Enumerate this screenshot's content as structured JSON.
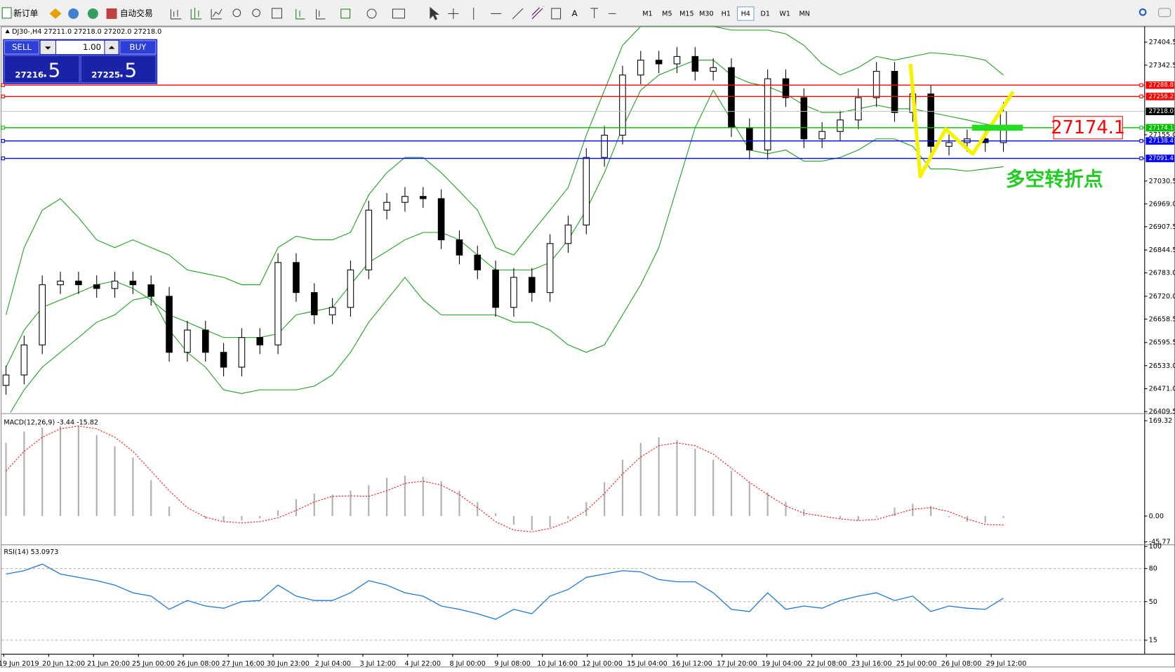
{
  "toolbar": {
    "new_order": "新订单",
    "auto_trading": "自动交易",
    "timeframes": [
      "M1",
      "M5",
      "M15",
      "M30",
      "H1",
      "H4",
      "D1",
      "W1",
      "MN"
    ],
    "active_timeframe": "H4"
  },
  "trade_panel": {
    "sell": "SELL",
    "buy": "BUY",
    "volume": "1.00",
    "sell_price": "27216",
    "sell_price_small": ".5",
    "buy_price": "27225",
    "buy_price_small": ".5"
  },
  "time_axis": {
    "labels": [
      "19 Jun 2019",
      "20 Jun 12:00",
      "21 Jun 20:00",
      "25 Jun 00:00",
      "26 Jun 08:00",
      "27 Jun 16:00",
      "30 Jun 23:00",
      "2 Jul 04:00",
      "3 Jul 12:00",
      "4 Jul 22:00",
      "8 Jul 00:00",
      "9 Jul 08:00",
      "10 Jul 16:00",
      "12 Jul 00:00",
      "15 Jul 04:00",
      "16 Jul 12:00",
      "17 Jul 20:00",
      "19 Jul 04:00",
      "22 Jul 08:00",
      "23 Jul 16:00",
      "25 Jul 00:00",
      "26 Jul 08:00",
      "29 Jul 12:00"
    ]
  },
  "chart_data": [
    {
      "type": "candlestick",
      "title": "DJ30-,H4  27211.0 27218.0 27202.0 27218.0",
      "candles": {
        "open": [
          26480,
          26508,
          26589,
          26751,
          26761,
          26751,
          26741,
          26761,
          26751,
          26720,
          26569,
          26629,
          26569,
          26529,
          26609,
          26589,
          26811,
          26730,
          26670,
          26690,
          26791,
          26952,
          26973,
          26989,
          26983,
          26872,
          26831,
          26791,
          26690,
          26771,
          26730,
          26862,
          26912,
          27094,
          27154,
          27316,
          27356,
          27346,
          27366,
          27326,
          27336,
          27174,
          27114,
          27306,
          27255,
          27144,
          27164,
          27195,
          27255,
          27326,
          27215,
          27265,
          27124,
          27134,
          27144,
          27134
        ],
        "high": [
          26533,
          26614,
          26776,
          26786,
          26786,
          26776,
          26786,
          26786,
          26776,
          26745,
          26654,
          26654,
          26594,
          26634,
          26634,
          26836,
          26836,
          26755,
          26715,
          26816,
          26977,
          26998,
          27014,
          27014,
          27008,
          26897,
          26856,
          26816,
          26796,
          26796,
          26887,
          26937,
          27119,
          27179,
          27341,
          27381,
          27381,
          27391,
          27391,
          27361,
          27361,
          27199,
          27331,
          27331,
          27280,
          27189,
          27220,
          27280,
          27351,
          27351,
          27290,
          27290,
          27159,
          27169,
          27169,
          27243
        ],
        "low": [
          26455,
          26483,
          26564,
          26726,
          26726,
          26716,
          26716,
          26726,
          26695,
          26544,
          26544,
          26544,
          26504,
          26504,
          26564,
          26564,
          26705,
          26645,
          26645,
          26665,
          26766,
          26927,
          26948,
          26958,
          26847,
          26806,
          26766,
          26665,
          26665,
          26705,
          26705,
          26837,
          26887,
          27069,
          27129,
          27291,
          27321,
          27321,
          27301,
          27301,
          27149,
          27089,
          27089,
          27230,
          27119,
          27119,
          27139,
          27170,
          27230,
          27190,
          27190,
          27099,
          27099,
          27109,
          27109,
          27109
        ],
        "close": [
          26508,
          26589,
          26751,
          26761,
          26751,
          26741,
          26761,
          26751,
          26720,
          26569,
          26629,
          26569,
          26529,
          26609,
          26589,
          26811,
          26730,
          26670,
          26690,
          26791,
          26952,
          26973,
          26989,
          26983,
          26872,
          26831,
          26791,
          26690,
          26771,
          26730,
          26862,
          26912,
          27094,
          27154,
          27316,
          27356,
          27346,
          27366,
          27326,
          27336,
          27174,
          27114,
          27306,
          27255,
          27144,
          27164,
          27195,
          27255,
          27326,
          27215,
          27265,
          27124,
          27134,
          27144,
          27134,
          27218
        ]
      },
      "bands": {
        "color": "#1aa01a",
        "upper": [
          26670,
          26851,
          26952,
          26983,
          26932,
          26872,
          26851,
          26872,
          26851,
          26831,
          26791,
          26781,
          26771,
          26751,
          26751,
          26851,
          26882,
          26872,
          26872,
          26892,
          26993,
          27053,
          27094,
          27094,
          27053,
          27003,
          26952,
          26851,
          26831,
          26892,
          26952,
          27013,
          27154,
          27275,
          27396,
          27447,
          27447,
          27447,
          27447,
          27447,
          27437,
          27437,
          27437,
          27427,
          27396,
          27346,
          27316,
          27336,
          27366,
          27356,
          27366,
          27376,
          27372,
          27366,
          27356,
          27316
        ],
        "middle": [
          26529,
          26629,
          26690,
          26710,
          26730,
          26751,
          26761,
          26741,
          26710,
          26670,
          26650,
          26629,
          26609,
          26609,
          26609,
          26619,
          26670,
          26680,
          26690,
          26751,
          26811,
          26841,
          26872,
          26892,
          26892,
          26872,
          26831,
          26791,
          26791,
          26791,
          26811,
          26872,
          26952,
          27053,
          27174,
          27275,
          27316,
          27336,
          27356,
          27356,
          27316,
          27295,
          27285,
          27265,
          27235,
          27215,
          27215,
          27225,
          27235,
          27225,
          27225,
          27215,
          27205,
          27195,
          27184,
          27174
        ],
        "lower": [
          26387,
          26468,
          26529,
          26569,
          26609,
          26650,
          26670,
          26710,
          26720,
          26629,
          26569,
          26529,
          26468,
          26458,
          26468,
          26468,
          26468,
          26478,
          26508,
          26569,
          26650,
          26710,
          26771,
          26710,
          26670,
          26670,
          26670,
          26670,
          26650,
          26650,
          26629,
          26589,
          26569,
          26589,
          26670,
          26751,
          26851,
          27013,
          27174,
          27275,
          27195,
          27114,
          27104,
          27114,
          27084,
          27084,
          27094,
          27114,
          27144,
          27144,
          27124,
          27063,
          27063,
          27057,
          27063,
          27069
        ]
      },
      "ylim": [
        26407,
        27447
      ],
      "yticks": [
        27404.5,
        27342.5,
        {
          "value": 27155,
          "label": "27155.0"
        },
        27030.5,
        {
          "value": 26969,
          "label": "26969.0"
        },
        26907.5,
        26844.5,
        {
          "value": 26783,
          "label": "26783.0"
        },
        {
          "value": 26720,
          "label": "26720.0"
        },
        26658.5,
        26595.5,
        {
          "value": 26533,
          "label": "26533.0"
        },
        {
          "value": 26471,
          "label": "26471.0"
        },
        26409.5
      ],
      "levels": [
        {
          "value": 27288.8,
          "color": "#ff0000"
        },
        {
          "value": 27258.2,
          "color": "#ff0000"
        },
        {
          "value": 27174.1,
          "color": "#00c000"
        },
        {
          "value": 27138.4,
          "color": "#0000ff"
        },
        {
          "value": 27091.4,
          "color": "#0000ff"
        }
      ],
      "current_price": {
        "value": 27218,
        "label": "27218.0"
      },
      "annotation": {
        "value": 27174.1,
        "text": "多空转折点",
        "color": "#22cc22"
      }
    },
    {
      "type": "macd",
      "title": "MACD(12,26,9) -3.44 -15.82",
      "histogram": {
        "color": "#b0b0b0",
        "values": [
          130,
          150,
          157,
          160,
          160,
          144,
          124,
          104,
          64,
          17,
          0,
          -5,
          -10,
          -8,
          -4,
          10,
          30,
          40,
          38,
          45,
          55,
          68,
          72,
          70,
          62,
          45,
          25,
          5,
          -15,
          -25,
          -20,
          -5,
          25,
          60,
          100,
          130,
          140,
          135,
          120,
          100,
          80,
          60,
          42,
          25,
          12,
          0,
          -5,
          -8,
          -2,
          15,
          22,
          18,
          -2,
          -10,
          -12,
          -3.44
        ]
      },
      "signal": {
        "color": "#ff0000",
        "values": [
          80,
          115,
          140,
          155,
          160,
          155,
          140,
          115,
          80,
          45,
          15,
          -2,
          -10,
          -12,
          -10,
          -3,
          10,
          25,
          35,
          36,
          35,
          45,
          58,
          62,
          55,
          38,
          15,
          -10,
          -25,
          -28,
          -22,
          -10,
          10,
          40,
          75,
          105,
          125,
          130,
          125,
          110,
          85,
          60,
          38,
          18,
          5,
          0,
          -5,
          -8,
          -6,
          3,
          12,
          15,
          8,
          -5,
          -15,
          -15.82
        ]
      },
      "ylim": [
        -49,
        180
      ],
      "yticks": [
        169.32,
        {
          "value": 0,
          "label": "0.00"
        },
        -45.77
      ]
    },
    {
      "type": "line",
      "title": "RSI(14) 53.0973",
      "series": [
        {
          "color": "#1e78d6",
          "values": [
            75,
            78,
            84,
            75,
            72,
            69,
            65,
            58,
            55,
            43,
            51,
            46,
            44,
            50,
            51,
            65,
            55,
            51,
            51,
            58,
            69,
            65,
            58,
            55,
            46,
            43,
            39,
            34,
            43,
            39,
            55,
            61,
            72,
            75,
            78,
            77,
            70,
            68,
            68,
            58,
            43,
            41,
            58,
            43,
            46,
            44,
            51,
            55,
            58,
            51,
            55,
            41,
            46,
            44,
            43,
            53.1
          ]
        }
      ],
      "ylim": [
        4,
        100.5
      ],
      "yticks": [
        100,
        80,
        50,
        15
      ],
      "levels": [
        80,
        50,
        15
      ]
    }
  ]
}
